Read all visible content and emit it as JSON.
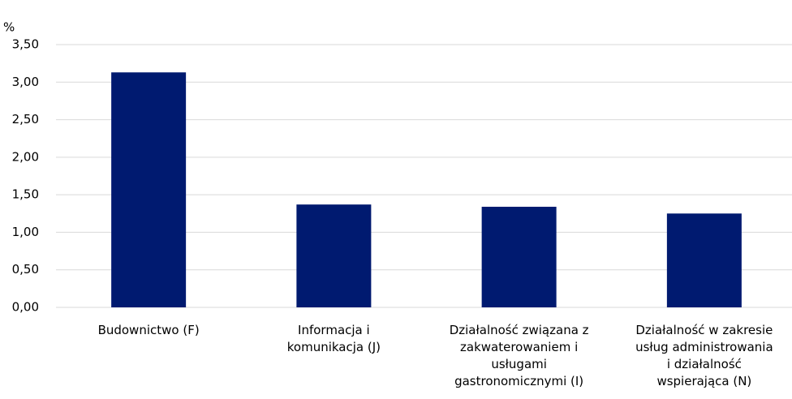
{
  "chart_data": {
    "type": "bar",
    "y_label": "%",
    "categories": [
      "Budownictwo (F)",
      "Informacja i komunikacja (J)",
      "Działalność związana z zakwaterowaniem i usługami gastronomicznymi (I)",
      "Działalność w zakresie usług administrowania i działalność wspierająca (N)"
    ],
    "values": [
      3.13,
      1.37,
      1.34,
      1.25
    ],
    "color": "#001a70",
    "ylim": [
      0,
      3.5
    ],
    "yticks": [
      {
        "value": 0,
        "label": "0,00"
      },
      {
        "value": 0.5,
        "label": "0,50"
      },
      {
        "value": 1,
        "label": "1,00"
      },
      {
        "value": 1.5,
        "label": "1,50"
      },
      {
        "value": 2,
        "label": "2,00"
      },
      {
        "value": 2.5,
        "label": "2,50"
      },
      {
        "value": 3,
        "label": "3,00"
      },
      {
        "value": 3.5,
        "label": "3,50"
      }
    ],
    "grid": true
  }
}
